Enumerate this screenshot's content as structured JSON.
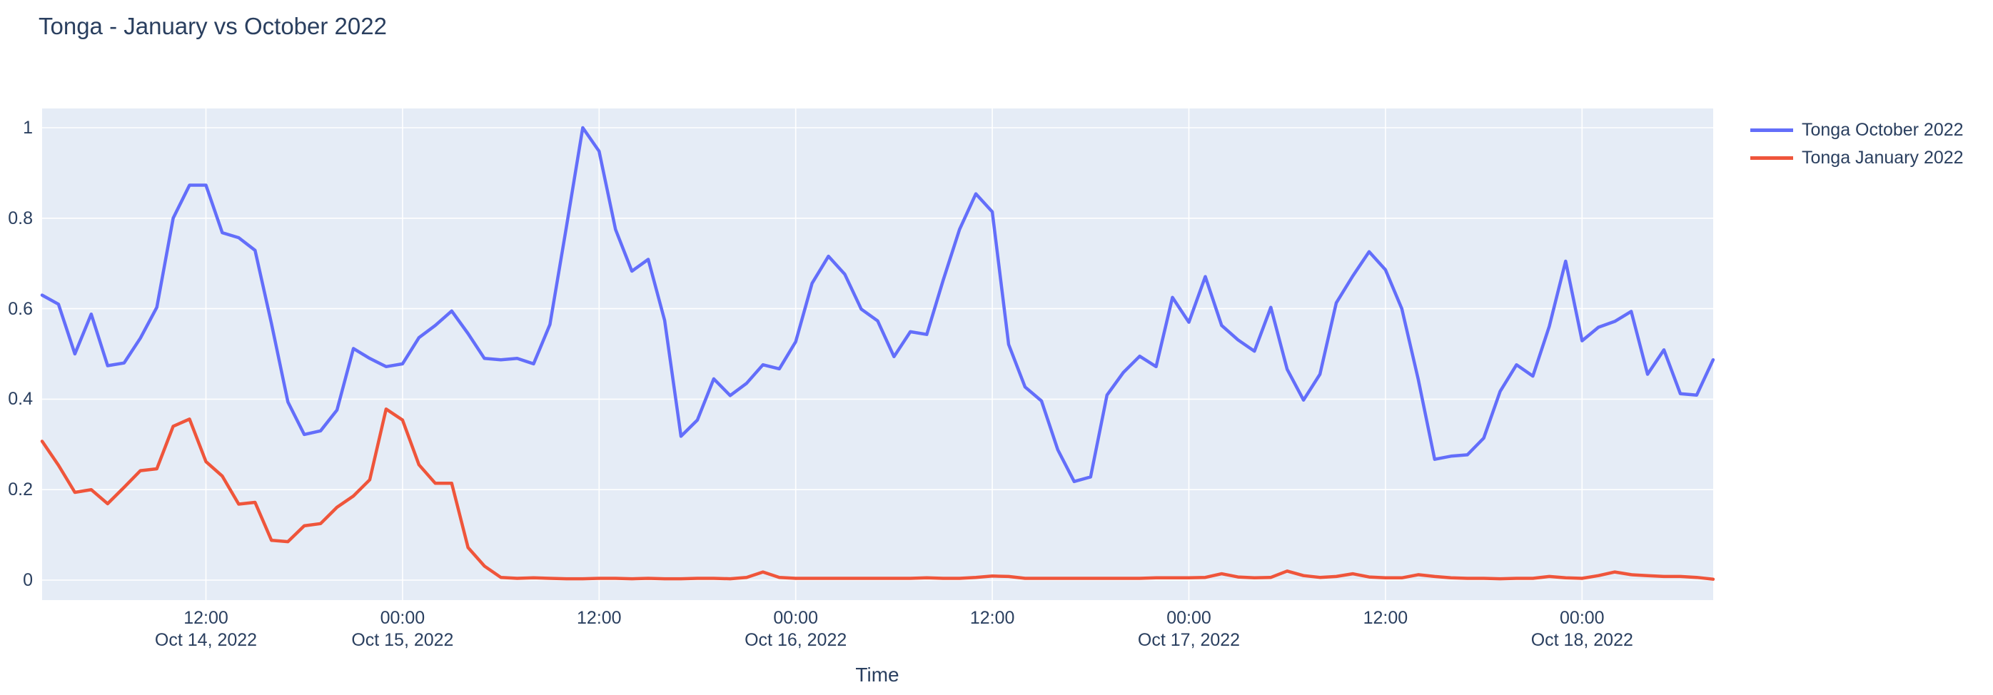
{
  "title": "Tonga - January vs October 2022",
  "colors": {
    "page_background": "#ffffff",
    "plot_background": "#e5ecf6",
    "gridline": "#ffffff",
    "text": "#2a3f5f",
    "series_october": "#636efa",
    "series_january": "#ef553b"
  },
  "chart_data": {
    "type": "line",
    "title": "Tonga - January vs October 2022",
    "xlabel": "Time",
    "ylabel": "",
    "ylim": [
      -0.044,
      1.042
    ],
    "grid": true,
    "legend_position": "outside-top-right",
    "x_start": "Oct 14, 2022 02:00",
    "x_step_hours": 1,
    "x_total_hours": 102,
    "y_ticks": [
      {
        "v": 0,
        "label": "0"
      },
      {
        "v": 0.2,
        "label": "0.2"
      },
      {
        "v": 0.4,
        "label": "0.4"
      },
      {
        "v": 0.6,
        "label": "0.6"
      },
      {
        "v": 0.8,
        "label": "0.8"
      },
      {
        "v": 1,
        "label": "1"
      }
    ],
    "x_ticks": [
      {
        "h": 10,
        "line1": "12:00",
        "line2": "Oct 14, 2022"
      },
      {
        "h": 22,
        "line1": "00:00",
        "line2": "Oct 15, 2022"
      },
      {
        "h": 34,
        "line1": "12:00",
        "line2": ""
      },
      {
        "h": 46,
        "line1": "00:00",
        "line2": "Oct 16, 2022"
      },
      {
        "h": 58,
        "line1": "12:00",
        "line2": ""
      },
      {
        "h": 70,
        "line1": "00:00",
        "line2": "Oct 17, 2022"
      },
      {
        "h": 82,
        "line1": "12:00",
        "line2": ""
      },
      {
        "h": 94,
        "line1": "00:00",
        "line2": "Oct 18, 2022"
      }
    ],
    "series": [
      {
        "name": "Tonga October 2022",
        "color": "#636efa",
        "values": [
          0.63,
          0.61,
          0.5,
          0.588,
          0.474,
          0.48,
          0.535,
          0.603,
          0.8,
          0.873,
          0.873,
          0.768,
          0.757,
          0.729,
          0.567,
          0.394,
          0.322,
          0.33,
          0.376,
          0.512,
          0.49,
          0.472,
          0.478,
          0.536,
          0.563,
          0.595,
          0.545,
          0.49,
          0.487,
          0.49,
          0.478,
          0.565,
          0.78,
          1.0,
          0.948,
          0.775,
          0.683,
          0.709,
          0.574,
          0.318,
          0.354,
          0.445,
          0.408,
          0.435,
          0.476,
          0.467,
          0.527,
          0.656,
          0.716,
          0.676,
          0.599,
          0.573,
          0.494,
          0.549,
          0.543,
          0.663,
          0.775,
          0.854,
          0.814,
          0.521,
          0.427,
          0.396,
          0.288,
          0.218,
          0.228,
          0.409,
          0.459,
          0.495,
          0.472,
          0.625,
          0.57,
          0.671,
          0.563,
          0.531,
          0.506,
          0.603,
          0.466,
          0.398,
          0.455,
          0.613,
          0.672,
          0.726,
          0.686,
          0.6,
          0.444,
          0.267,
          0.274,
          0.277,
          0.314,
          0.417,
          0.476,
          0.451,
          0.561,
          0.705,
          0.529,
          0.559,
          0.572,
          0.594,
          0.455,
          0.509,
          0.412,
          0.409,
          0.487
        ]
      },
      {
        "name": "Tonga January 2022",
        "color": "#ef553b",
        "values": [
          0.307,
          0.254,
          0.194,
          0.2,
          0.169,
          0.205,
          0.242,
          0.246,
          0.34,
          0.356,
          0.262,
          0.23,
          0.168,
          0.172,
          0.088,
          0.085,
          0.12,
          0.125,
          0.161,
          0.186,
          0.222,
          0.378,
          0.354,
          0.255,
          0.214,
          0.214,
          0.072,
          0.031,
          0.006,
          0.004,
          0.005,
          0.004,
          0.003,
          0.003,
          0.004,
          0.004,
          0.003,
          0.004,
          0.003,
          0.003,
          0.004,
          0.004,
          0.003,
          0.006,
          0.018,
          0.006,
          0.004,
          0.004,
          0.004,
          0.004,
          0.004,
          0.004,
          0.004,
          0.004,
          0.005,
          0.004,
          0.004,
          0.006,
          0.009,
          0.008,
          0.004,
          0.004,
          0.004,
          0.004,
          0.004,
          0.004,
          0.004,
          0.004,
          0.005,
          0.005,
          0.005,
          0.006,
          0.014,
          0.007,
          0.005,
          0.006,
          0.02,
          0.01,
          0.006,
          0.008,
          0.014,
          0.007,
          0.005,
          0.005,
          0.012,
          0.008,
          0.005,
          0.004,
          0.004,
          0.003,
          0.004,
          0.004,
          0.008,
          0.005,
          0.004,
          0.01,
          0.018,
          0.012,
          0.01,
          0.008,
          0.008,
          0.006,
          0.002
        ]
      }
    ]
  }
}
